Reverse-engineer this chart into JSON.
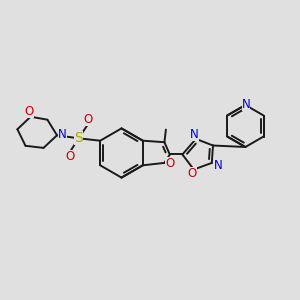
{
  "bg_color": "#e0e0e0",
  "bond_color": "#1a1a1a",
  "bond_width": 1.4,
  "colors": {
    "N": "#0000cc",
    "O": "#cc0000",
    "S": "#aaaa00",
    "C": "#1a1a1a"
  },
  "font_size": 8.5,
  "fig_size": [
    3.0,
    3.0
  ],
  "dpi": 100
}
